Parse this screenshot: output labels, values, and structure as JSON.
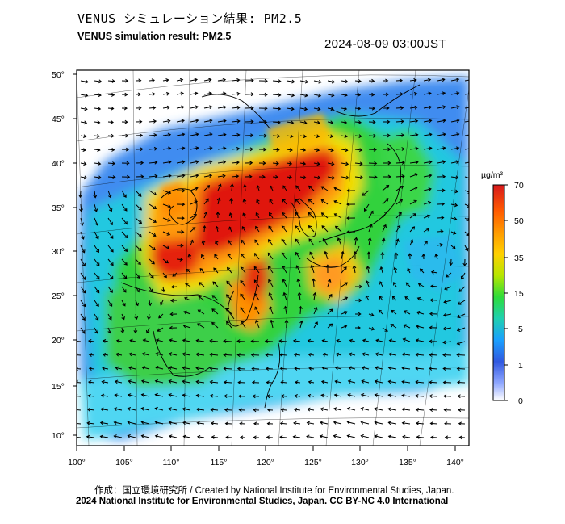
{
  "header": {
    "title_jp": "VENUS シミュレーション結果: PM2.5",
    "title_en": "VENUS simulation result: PM2.5",
    "timestamp": "2024-08-09 03:00JST"
  },
  "map": {
    "region": "East Asia",
    "quantity": "PM2.5",
    "lat_ticks": [
      "50°",
      "45°",
      "40°",
      "35°",
      "30°",
      "25°",
      "20°",
      "15°",
      "10°"
    ],
    "lon_ticks": [
      "100°",
      "105°",
      "110°",
      "115°",
      "120°",
      "125°",
      "130°",
      "135°",
      "140°"
    ],
    "wind_vectors": "shown",
    "coastlines": "shown",
    "graticule": "shown"
  },
  "colorbar": {
    "unit": "µg/m³",
    "ticks": [
      "70",
      "50",
      "35",
      "15",
      "5",
      "1",
      "0"
    ],
    "colors": [
      "#d7191c",
      "#ff6a00",
      "#ffb000",
      "#9be000",
      "#1ed760",
      "#21c8d8",
      "#1a8cff",
      "#3050e0",
      "#7090ff",
      "#c0d0ff",
      "#ffffff"
    ]
  },
  "footer": {
    "credit_line1": "作成：国立環境研究所 / Created by National Institute for Environmental Studies, Japan.",
    "credit_line2": "2024 National Institute for Environmental Studies, Japan. CC BY-NC 4.0 International"
  }
}
